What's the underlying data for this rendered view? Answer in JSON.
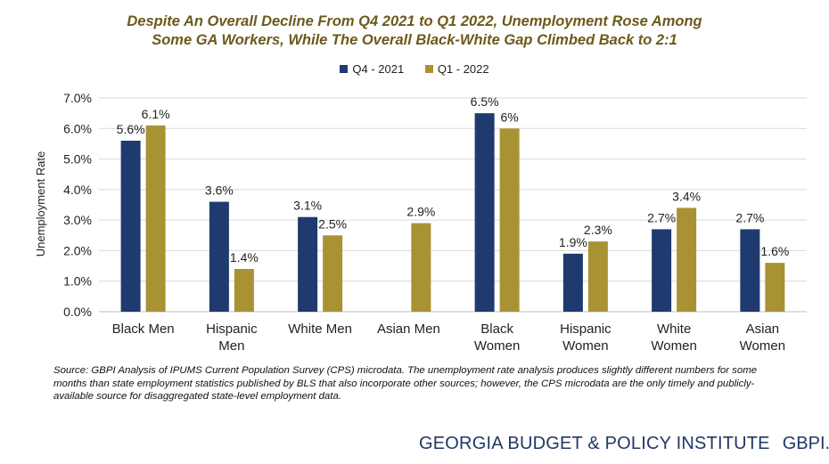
{
  "title_line1": "Despite An Overall Decline From Q4 2021 to Q1 2022, Unemployment Rose Among",
  "title_line2": "Some GA Workers, While The Overall Black-White Gap Climbed Back to 2:1",
  "source_text": "Source: GBPI Analysis of IPUMS Current Population Survey (CPS) microdata. The unemployment rate analysis produces slightly different numbers for some months than state employment statistics published by BLS that also incorporate other sources; however, the CPS microdata are the only timely and publicly-available source for disaggregated state-level employment data.",
  "footer": {
    "org_name": "GEORGIA BUDGET & POLICY INSTITUTE",
    "url": "GBPI.org"
  },
  "colors": {
    "q4": "#1f3a6e",
    "q1": "#a99233",
    "title": "#6b5a1a",
    "footer": "#1f3864"
  },
  "chart_data": {
    "type": "bar",
    "ylabel": "Unemployment Rate",
    "ylim": [
      0,
      7
    ],
    "yticks": [
      "0.0%",
      "1.0%",
      "2.0%",
      "3.0%",
      "4.0%",
      "5.0%",
      "6.0%",
      "7.0%"
    ],
    "legend_position": "top",
    "grid": true,
    "categories": [
      [
        "Black Men"
      ],
      [
        "Hispanic",
        "Men"
      ],
      [
        "White Men"
      ],
      [
        "Asian Men"
      ],
      [
        "Black",
        "Women"
      ],
      [
        "Hispanic",
        "Women"
      ],
      [
        "White",
        "Women"
      ],
      [
        "Asian",
        "Women"
      ]
    ],
    "series": [
      {
        "name": "Q4 - 2021",
        "values": [
          5.6,
          3.6,
          3.1,
          null,
          6.5,
          1.9,
          2.7,
          2.7
        ],
        "labels": [
          "5.6%",
          "3.6%",
          "3.1%",
          "",
          "6.5%",
          "1.9%",
          "2.7%",
          "2.7%"
        ]
      },
      {
        "name": "Q1 - 2022",
        "values": [
          6.1,
          1.4,
          2.5,
          2.9,
          6.0,
          2.3,
          3.4,
          1.6
        ],
        "labels": [
          "6.1%",
          "1.4%",
          "2.5%",
          "2.9%",
          "6%",
          "2.3%",
          "3.4%",
          "1.6%"
        ]
      }
    ]
  }
}
